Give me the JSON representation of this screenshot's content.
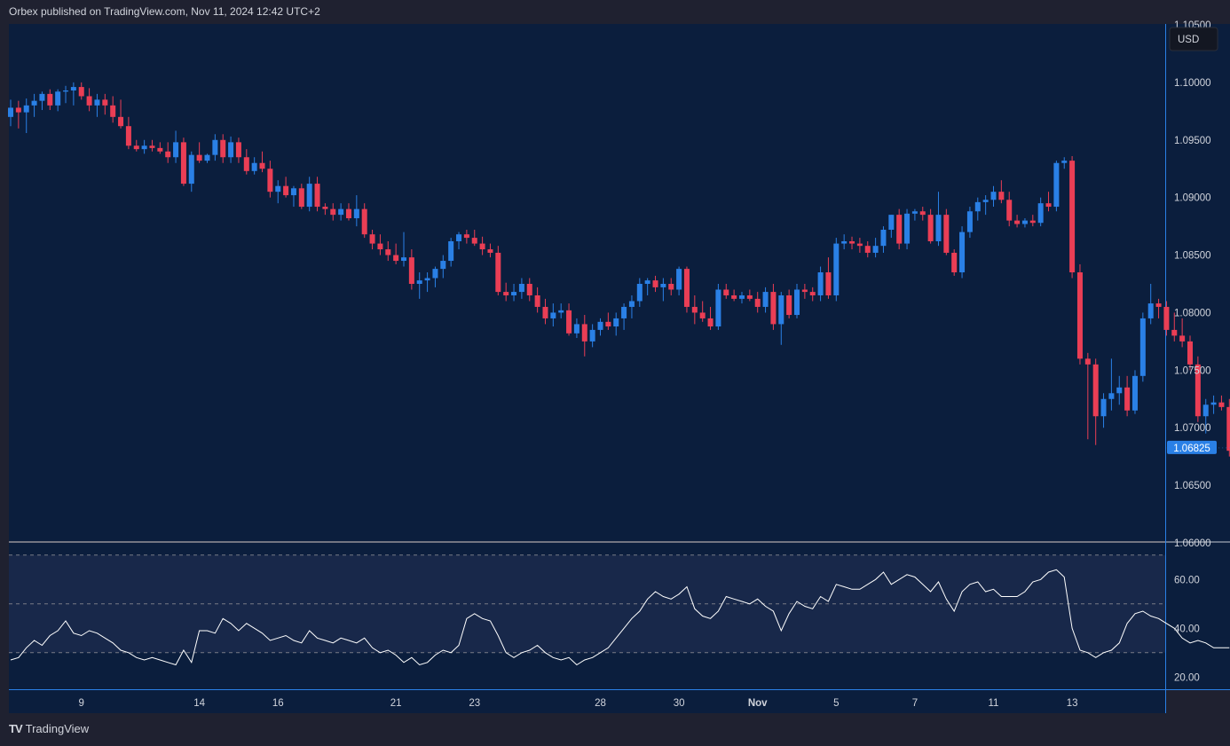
{
  "header": {
    "published_text": "Orbex published on TradingView.com, Nov 11, 2024 12:42 UTC+2"
  },
  "footer": {
    "brand_mark": "TV",
    "brand_name": "TradingView"
  },
  "currency_badge": "USD",
  "colors": {
    "background": "#0b1e3d",
    "frame": "#1f2130",
    "bull": "#2a80e6",
    "bear": "#ea3e55",
    "rsi_line": "#ffffff",
    "rsi_band": "#18284a",
    "last_price_badge": "#2a80e6",
    "text": "#d1d4dc"
  },
  "chart_data": [
    {
      "type": "candlestick",
      "symbol_currency": "USD",
      "last_price": "1.06825",
      "y_axis": {
        "ylim": [
          1.06,
          1.105
        ],
        "tick_labels": [
          "1.10500",
          "1.10000",
          "1.09500",
          "1.09000",
          "1.08500",
          "1.08000",
          "1.07500",
          "1.07000",
          "1.06500",
          "1.06000"
        ],
        "tick_values": [
          1.105,
          1.1,
          1.095,
          1.09,
          1.085,
          1.08,
          1.075,
          1.07,
          1.065,
          1.06
        ]
      },
      "x_axis": {
        "tick_labels": [
          "9",
          "14",
          "16",
          "21",
          "23",
          "28",
          "30",
          "Nov",
          "5",
          "7",
          "11",
          "13"
        ],
        "tick_index": [
          9,
          24,
          34,
          49,
          59,
          75,
          85,
          95,
          105,
          115,
          125,
          135
        ]
      },
      "candles": [
        [
          1.097,
          1.0985,
          1.0962,
          1.0978
        ],
        [
          1.0978,
          1.0984,
          1.096,
          1.0974
        ],
        [
          1.0974,
          1.0986,
          1.0956,
          1.098
        ],
        [
          1.098,
          1.099,
          1.097,
          1.0984
        ],
        [
          1.0984,
          1.0992,
          1.0976,
          1.099
        ],
        [
          1.099,
          1.0994,
          1.0976,
          1.098
        ],
        [
          1.098,
          1.0994,
          1.0975,
          1.0992
        ],
        [
          1.0992,
          1.0997,
          1.0982,
          1.0993
        ],
        [
          1.0993,
          1.1,
          1.098,
          1.0996
        ],
        [
          1.0996,
          1.1,
          1.0985,
          1.0988
        ],
        [
          1.0988,
          1.0995,
          1.0975,
          1.098
        ],
        [
          1.098,
          1.099,
          1.097,
          1.0985
        ],
        [
          1.0985,
          1.099,
          1.0972,
          1.098
        ],
        [
          1.098,
          1.0988,
          1.0965,
          1.097
        ],
        [
          1.097,
          1.0985,
          1.096,
          1.0962
        ],
        [
          1.0962,
          1.097,
          1.0942,
          1.0945
        ],
        [
          1.0945,
          1.095,
          1.094,
          1.0942
        ],
        [
          1.0942,
          1.095,
          1.0938,
          1.0945
        ],
        [
          1.0945,
          1.095,
          1.094,
          1.0943
        ],
        [
          1.0943,
          1.0948,
          1.0938,
          1.094
        ],
        [
          1.094,
          1.0948,
          1.093,
          1.0935
        ],
        [
          1.0935,
          1.0958,
          1.093,
          1.0948
        ],
        [
          1.0948,
          1.0952,
          1.091,
          1.0912
        ],
        [
          1.0912,
          1.094,
          1.0905,
          1.0937
        ],
        [
          1.0937,
          1.0948,
          1.093,
          1.0932
        ],
        [
          1.0932,
          1.0938,
          1.093,
          1.0937
        ],
        [
          1.0937,
          1.0955,
          1.0932,
          1.095
        ],
        [
          1.095,
          1.0955,
          1.093,
          1.0935
        ],
        [
          1.0935,
          1.0953,
          1.093,
          1.0948
        ],
        [
          1.0948,
          1.0952,
          1.093,
          1.0935
        ],
        [
          1.0935,
          1.0942,
          1.092,
          1.0923
        ],
        [
          1.0923,
          1.0935,
          1.092,
          1.093
        ],
        [
          1.093,
          1.094,
          1.0922,
          1.0925
        ],
        [
          1.0925,
          1.0932,
          1.09,
          1.0905
        ],
        [
          1.0905,
          1.0915,
          1.0895,
          1.091
        ],
        [
          1.091,
          1.0918,
          1.09,
          1.0902
        ],
        [
          1.0902,
          1.091,
          1.0892,
          1.0908
        ],
        [
          1.0908,
          1.0912,
          1.089,
          1.0892
        ],
        [
          1.0892,
          1.0918,
          1.0888,
          1.0912
        ],
        [
          1.0912,
          1.0918,
          1.0888,
          1.0892
        ],
        [
          1.0892,
          1.0895,
          1.0885,
          1.089
        ],
        [
          1.089,
          1.0895,
          1.088,
          1.0885
        ],
        [
          1.0885,
          1.0895,
          1.088,
          1.089
        ],
        [
          1.089,
          1.0895,
          1.088,
          1.0882
        ],
        [
          1.0882,
          1.0902,
          1.0875,
          1.089
        ],
        [
          1.089,
          1.0895,
          1.0865,
          1.0868
        ],
        [
          1.0868,
          1.0872,
          1.0855,
          1.086
        ],
        [
          1.086,
          1.0868,
          1.085,
          1.0855
        ],
        [
          1.0855,
          1.0862,
          1.0845,
          1.085
        ],
        [
          1.085,
          1.086,
          1.0842,
          1.0845
        ],
        [
          1.0845,
          1.087,
          1.084,
          1.0848
        ],
        [
          1.0848,
          1.0855,
          1.082,
          1.0825
        ],
        [
          1.0825,
          1.0835,
          1.0812,
          1.0828
        ],
        [
          1.0828,
          1.0835,
          1.0818,
          1.083
        ],
        [
          1.083,
          1.084,
          1.0822,
          1.0838
        ],
        [
          1.0838,
          1.085,
          1.083,
          1.0845
        ],
        [
          1.0845,
          1.0865,
          1.084,
          1.0862
        ],
        [
          1.0862,
          1.087,
          1.0855,
          1.0868
        ],
        [
          1.0868,
          1.0872,
          1.086,
          1.0865
        ],
        [
          1.0865,
          1.0872,
          1.0858,
          1.086
        ],
        [
          1.086,
          1.0866,
          1.085,
          1.0855
        ],
        [
          1.0855,
          1.086,
          1.0848,
          1.0852
        ],
        [
          1.0852,
          1.0858,
          1.0815,
          1.0818
        ],
        [
          1.0818,
          1.0826,
          1.081,
          1.0815
        ],
        [
          1.0815,
          1.0825,
          1.081,
          1.0818
        ],
        [
          1.0818,
          1.083,
          1.0812,
          1.0825
        ],
        [
          1.0825,
          1.083,
          1.081,
          1.0815
        ],
        [
          1.0815,
          1.0822,
          1.08,
          1.0805
        ],
        [
          1.0805,
          1.0812,
          1.079,
          1.0795
        ],
        [
          1.0795,
          1.0808,
          1.0788,
          1.08
        ],
        [
          1.08,
          1.0808,
          1.0795,
          1.0802
        ],
        [
          1.0802,
          1.0808,
          1.078,
          1.0782
        ],
        [
          1.0782,
          1.0795,
          1.0778,
          1.079
        ],
        [
          1.079,
          1.0798,
          1.0762,
          1.0775
        ],
        [
          1.0775,
          1.079,
          1.077,
          1.0785
        ],
        [
          1.0785,
          1.0795,
          1.078,
          1.0792
        ],
        [
          1.0792,
          1.08,
          1.0785,
          1.0788
        ],
        [
          1.0788,
          1.08,
          1.078,
          1.0795
        ],
        [
          1.0795,
          1.0808,
          1.0785,
          1.0805
        ],
        [
          1.0805,
          1.0815,
          1.0795,
          1.081
        ],
        [
          1.081,
          1.083,
          1.0805,
          1.0825
        ],
        [
          1.0825,
          1.083,
          1.0815,
          1.0828
        ],
        [
          1.0828,
          1.0832,
          1.0818,
          1.0822
        ],
        [
          1.0822,
          1.083,
          1.081,
          1.0825
        ],
        [
          1.0825,
          1.083,
          1.0815,
          1.082
        ],
        [
          1.082,
          1.084,
          1.0815,
          1.0838
        ],
        [
          1.0838,
          1.084,
          1.08,
          1.0805
        ],
        [
          1.0805,
          1.0815,
          1.079,
          1.08
        ],
        [
          1.08,
          1.081,
          1.0792,
          1.0795
        ],
        [
          1.0795,
          1.0805,
          1.0785,
          1.0788
        ],
        [
          1.0788,
          1.0825,
          1.0785,
          1.082
        ],
        [
          1.082,
          1.0825,
          1.0812,
          1.0815
        ],
        [
          1.0815,
          1.082,
          1.081,
          1.0812
        ],
        [
          1.0812,
          1.0818,
          1.0808,
          1.0815
        ],
        [
          1.0815,
          1.082,
          1.081,
          1.0812
        ],
        [
          1.0812,
          1.0818,
          1.08,
          1.0805
        ],
        [
          1.0805,
          1.0822,
          1.08,
          1.0818
        ],
        [
          1.0818,
          1.0825,
          1.0785,
          1.079
        ],
        [
          1.079,
          1.0818,
          1.0772,
          1.0815
        ],
        [
          1.0815,
          1.082,
          1.0795,
          1.0798
        ],
        [
          1.0798,
          1.0825,
          1.0795,
          1.082
        ],
        [
          1.082,
          1.0825,
          1.0812,
          1.0818
        ],
        [
          1.0818,
          1.0822,
          1.081,
          1.0815
        ],
        [
          1.0815,
          1.084,
          1.081,
          1.0835
        ],
        [
          1.0835,
          1.0848,
          1.0812,
          1.0815
        ],
        [
          1.0815,
          1.0865,
          1.081,
          1.086
        ],
        [
          1.086,
          1.0868,
          1.0855,
          1.0862
        ],
        [
          1.0862,
          1.0866,
          1.0855,
          1.086
        ],
        [
          1.086,
          1.0865,
          1.0852,
          1.0858
        ],
        [
          1.0858,
          1.0862,
          1.0848,
          1.0852
        ],
        [
          1.0852,
          1.0865,
          1.0848,
          1.0858
        ],
        [
          1.0858,
          1.0875,
          1.0852,
          1.0872
        ],
        [
          1.0872,
          1.0885,
          1.0865,
          1.0885
        ],
        [
          1.0885,
          1.089,
          1.0855,
          1.086
        ],
        [
          1.086,
          1.089,
          1.0855,
          1.0886
        ],
        [
          1.0886,
          1.089,
          1.088,
          1.0888
        ],
        [
          1.0888,
          1.0892,
          1.088,
          1.0885
        ],
        [
          1.0885,
          1.089,
          1.086,
          1.0862
        ],
        [
          1.0862,
          1.0905,
          1.0858,
          1.0885
        ],
        [
          1.0885,
          1.089,
          1.085,
          1.0852
        ],
        [
          1.0852,
          1.0855,
          1.0832,
          1.0835
        ],
        [
          1.0835,
          1.0875,
          1.083,
          1.087
        ],
        [
          1.087,
          1.0892,
          1.0865,
          1.0888
        ],
        [
          1.0888,
          1.09,
          1.088,
          1.0896
        ],
        [
          1.0896,
          1.0902,
          1.0885,
          1.0898
        ],
        [
          1.0898,
          1.091,
          1.0892,
          1.0905
        ],
        [
          1.0905,
          1.0915,
          1.0895,
          1.0898
        ],
        [
          1.0898,
          1.0905,
          1.0875,
          1.088
        ],
        [
          1.088,
          1.0885,
          1.0874,
          1.0877
        ],
        [
          1.0877,
          1.0882,
          1.0874,
          1.088
        ],
        [
          1.088,
          1.0885,
          1.0875,
          1.0878
        ],
        [
          1.0878,
          1.09,
          1.0875,
          1.0895
        ],
        [
          1.0895,
          1.0905,
          1.0888,
          1.0892
        ],
        [
          1.0892,
          1.0932,
          1.0888,
          1.093
        ],
        [
          1.093,
          1.0935,
          1.0925,
          1.0932
        ],
        [
          1.0932,
          1.0936,
          1.083,
          1.0835
        ],
        [
          1.0835,
          1.0842,
          1.0755,
          1.076
        ],
        [
          1.076,
          1.0765,
          1.069,
          1.0755
        ],
        [
          1.0755,
          1.076,
          1.0685,
          1.071
        ],
        [
          1.071,
          1.073,
          1.07,
          1.0725
        ],
        [
          1.0725,
          1.076,
          1.0715,
          1.073
        ],
        [
          1.073,
          1.0745,
          1.072,
          1.0735
        ],
        [
          1.0735,
          1.0745,
          1.071,
          1.0715
        ],
        [
          1.0715,
          1.075,
          1.0712,
          1.0745
        ],
        [
          1.0745,
          1.08,
          1.074,
          1.0795
        ],
        [
          1.0795,
          1.0825,
          1.079,
          1.0808
        ],
        [
          1.0808,
          1.0812,
          1.0795,
          1.0805
        ],
        [
          1.0805,
          1.081,
          1.078,
          1.0785
        ],
        [
          1.0785,
          1.08,
          1.0775,
          1.078
        ],
        [
          1.078,
          1.0795,
          1.077,
          1.0775
        ],
        [
          1.0775,
          1.078,
          1.075,
          1.0755
        ],
        [
          1.0755,
          1.0762,
          1.0705,
          1.071
        ],
        [
          1.071,
          1.0725,
          1.0695,
          1.072
        ],
        [
          1.072,
          1.0728,
          1.0712,
          1.0722
        ],
        [
          1.0722,
          1.0728,
          1.0715,
          1.0718
        ],
        [
          1.0718,
          1.0725,
          1.0675,
          1.068
        ],
        [
          1.068,
          1.069,
          1.0678,
          1.0682
        ]
      ]
    },
    {
      "type": "line",
      "indicator": "RSI",
      "y_axis": {
        "ylim": [
          15,
          75
        ],
        "tick_labels": [
          "60.00",
          "40.00",
          "20.00"
        ],
        "tick_values": [
          60,
          40,
          20
        ],
        "dashed_levels": [
          70,
          50,
          30
        ]
      },
      "values": [
        27,
        28,
        32,
        35,
        33,
        37,
        39,
        43,
        38,
        37,
        39,
        38,
        36,
        34,
        31,
        30,
        28,
        27,
        28,
        27,
        26,
        25,
        31,
        26,
        39,
        39,
        38,
        44,
        42,
        39,
        42,
        40,
        38,
        35,
        36,
        37,
        35,
        34,
        39,
        36,
        35,
        34,
        36,
        35,
        34,
        36,
        32,
        30,
        31,
        29,
        26,
        28,
        25,
        26,
        29,
        31,
        30,
        33,
        44,
        46,
        44,
        43,
        37,
        30,
        28,
        30,
        31,
        33,
        30,
        28,
        27,
        28,
        25,
        27,
        28,
        30,
        32,
        36,
        40,
        44,
        47,
        52,
        55,
        53,
        52,
        54,
        57,
        48,
        45,
        44,
        47,
        53,
        52,
        51,
        50,
        52,
        49,
        47,
        39,
        46,
        51,
        49,
        48,
        53,
        51,
        58,
        57,
        56,
        56,
        58,
        60,
        63,
        58,
        60,
        62,
        61,
        58,
        55,
        59,
        52,
        47,
        55,
        58,
        59,
        55,
        56,
        53,
        53,
        53,
        55,
        59,
        60,
        63,
        64,
        61,
        40,
        31,
        30,
        28,
        30,
        31,
        34,
        42,
        46,
        47,
        45,
        44,
        42,
        40,
        36,
        34,
        35,
        34,
        32,
        32,
        32
      ]
    }
  ]
}
